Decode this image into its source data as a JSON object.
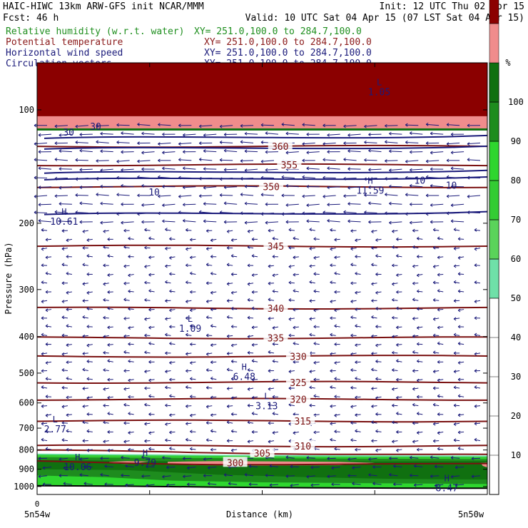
{
  "header": {
    "line1_left": "HAIC-HIWC 13km ARW-GFS init    NCAR/MMM",
    "line1_right": "Init: 12 UTC Thu 02 Apr 15",
    "line2_left": "Fcst:   46 h",
    "line2_right": "Valid: 10 UTC Sat 04 Apr 15 (07 LST Sat 04 Apr 15)"
  },
  "legend": [
    {
      "name": "Relative humidity (w.r.t. water)",
      "xy": "XY= 251.0,100.0 to 284.7,100.0",
      "color": "#1f8f1f"
    },
    {
      "name": "Potential temperature",
      "xy": "XY= 251.0,100.0 to 284.7,100.0",
      "color": "#8b1a1a"
    },
    {
      "name": "Horizontal wind speed",
      "xy": "XY= 251.0,100.0 to 284.7,100.0",
      "color": "#1a1a7a"
    },
    {
      "name": "Circulation vectors",
      "xy": "XY= 251.0,100.0 to 284.7,100.0",
      "color": "#1a1a7a"
    }
  ],
  "chart_data": {
    "type": "heatmap",
    "ylabel": "Pressure (hPa)",
    "xlabel": "Distance (km)",
    "y_scale": "log",
    "ylim": [
      1050,
      75
    ],
    "y_ticks": [
      100,
      200,
      300,
      400,
      500,
      600,
      700,
      800,
      900,
      1000
    ],
    "x_tick_label": "0",
    "x_left_label": "5n54w",
    "x_right_label": "5n50w",
    "colorbar": {
      "unit": "%",
      "tick_labels": [
        10,
        20,
        30,
        40,
        50,
        60,
        70,
        80,
        90,
        100
      ],
      "levels": [
        {
          "min": 50,
          "max": 60,
          "color": "#6fe0a8"
        },
        {
          "min": 60,
          "max": 70,
          "color": "#5ad35a"
        },
        {
          "min": 70,
          "max": 80,
          "color": "#33cc33"
        },
        {
          "min": 80,
          "max": 90,
          "color": "#2fd62f"
        },
        {
          "min": 90,
          "max": 100,
          "color": "#1e8c1e"
        },
        {
          "min": 100,
          "max": 110,
          "color": "#107010"
        },
        {
          "min": 110,
          "max": 120,
          "color": "#f08c8c"
        },
        {
          "min": 120,
          "max": 130,
          "color": "#8b0000"
        }
      ]
    },
    "isentropes": [
      {
        "label": "360",
        "p": 125
      },
      {
        "label": "355",
        "p": 140
      },
      {
        "label": "350",
        "p": 160
      },
      {
        "label": "345",
        "p": 230
      },
      {
        "label": "340",
        "p": 336
      },
      {
        "label": "335",
        "p": 403
      },
      {
        "label": "330",
        "p": 451
      },
      {
        "label": "325",
        "p": 529
      },
      {
        "label": "320",
        "p": 587
      },
      {
        "label": "315",
        "p": 670
      },
      {
        "label": "310",
        "p": 780
      },
      {
        "label": "305",
        "p": 815
      },
      {
        "label": "300",
        "p": 864
      }
    ],
    "extrema": [
      {
        "letter": "H",
        "value": "10.61",
        "x": 0.06,
        "p": 190
      },
      {
        "letter": "L",
        "value": "1.09",
        "x": 0.34,
        "p": 365
      },
      {
        "letter": "H",
        "value": "6.48",
        "x": 0.46,
        "p": 490
      },
      {
        "letter": "L",
        "value": "3.13",
        "x": 0.51,
        "p": 586
      },
      {
        "letter": "L",
        "value": "2.77",
        "x": 0.04,
        "p": 676
      },
      {
        "letter": "H",
        "value": "10.06",
        "x": 0.09,
        "p": 852
      },
      {
        "letter": "H",
        "value": "9.79",
        "x": 0.24,
        "p": 830
      },
      {
        "letter": "H",
        "value": "11.59",
        "x": 0.74,
        "p": 157
      },
      {
        "letter": "H",
        "value": "8.47",
        "x": 0.91,
        "p": 968
      },
      {
        "letter": "L",
        "value": "1.05",
        "x": 0.76,
        "p": 86
      }
    ],
    "wind_labels": [
      {
        "text": "10",
        "x": 0.26,
        "p": 169
      },
      {
        "text": "10",
        "x": 0.85,
        "p": 157
      },
      {
        "text": "10",
        "x": 0.92,
        "p": 162
      },
      {
        "text": "30",
        "x": 0.07,
        "p": 117
      },
      {
        "text": "30",
        "x": 0.13,
        "p": 113
      }
    ]
  }
}
